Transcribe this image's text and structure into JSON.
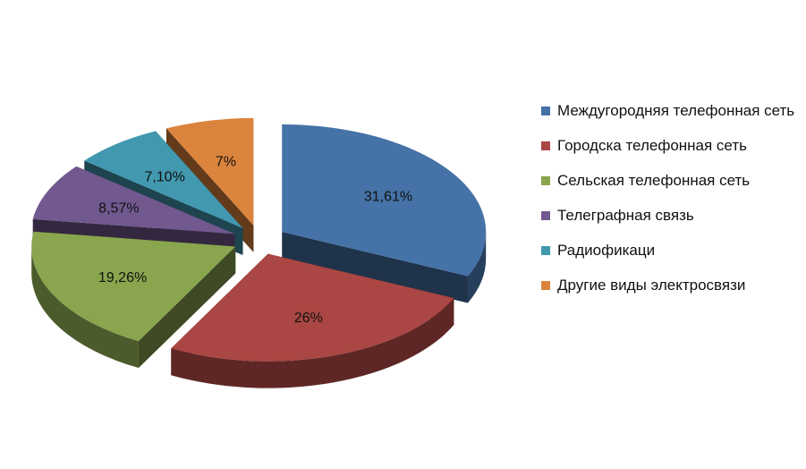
{
  "chart_data": {
    "type": "pie",
    "title": "",
    "categories": [
      "Междугородняя телефонная сеть",
      "Городска телефонная сеть",
      "Сельская телефонная сеть",
      "Телеграфная связь",
      "Радиофикаци",
      "Другие виды электросвязи"
    ],
    "values": [
      31.61,
      26,
      19.26,
      8.57,
      7.1,
      7
    ],
    "data_labels": [
      "31,61%",
      "26%",
      "19,26%",
      "8,57%",
      "7,10%",
      "7%"
    ],
    "colors": [
      "#4572A7",
      "#AA4643",
      "#89A54E",
      "#71588F",
      "#4198AF",
      "#DB843D"
    ],
    "legend_position": "right",
    "exploded": true,
    "three_d": true
  }
}
